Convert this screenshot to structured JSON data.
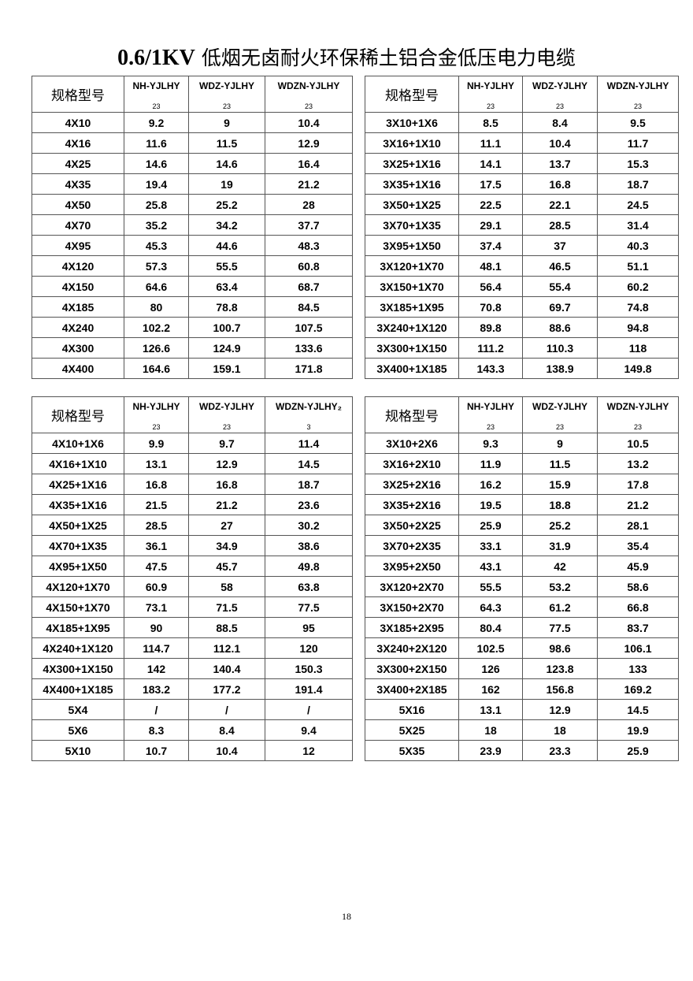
{
  "title_prefix": "0.6/1KV",
  "title_rest": "低烟无卤耐火环保稀土铝合金低压电力电缆",
  "page_number": "18",
  "tables": [
    {
      "headers": [
        "规格型号",
        "NH-YJLHY",
        "WDZ-YJLHY",
        "WDZN-YJLHY"
      ],
      "subs": [
        "",
        "23",
        "23",
        "23"
      ],
      "rows": [
        [
          "4X10",
          "9.2",
          "9",
          "10.4"
        ],
        [
          "4X16",
          "11.6",
          "11.5",
          "12.9"
        ],
        [
          "4X25",
          "14.6",
          "14.6",
          "16.4"
        ],
        [
          "4X35",
          "19.4",
          "19",
          "21.2"
        ],
        [
          "4X50",
          "25.8",
          "25.2",
          "28"
        ],
        [
          "4X70",
          "35.2",
          "34.2",
          "37.7"
        ],
        [
          "4X95",
          "45.3",
          "44.6",
          "48.3"
        ],
        [
          "4X120",
          "57.3",
          "55.5",
          "60.8"
        ],
        [
          "4X150",
          "64.6",
          "63.4",
          "68.7"
        ],
        [
          "4X185",
          "80",
          "78.8",
          "84.5"
        ],
        [
          "4X240",
          "102.2",
          "100.7",
          "107.5"
        ],
        [
          "4X300",
          "126.6",
          "124.9",
          "133.6"
        ],
        [
          "4X400",
          "164.6",
          "159.1",
          "171.8"
        ]
      ]
    },
    {
      "headers": [
        "规格型号",
        "NH-YJLHY",
        "WDZ-YJLHY",
        "WDZN-YJLHY"
      ],
      "subs": [
        "",
        "23",
        "23",
        "23"
      ],
      "rows": [
        [
          "3X10+1X6",
          "8.5",
          "8.4",
          "9.5"
        ],
        [
          "3X16+1X10",
          "11.1",
          "10.4",
          "11.7"
        ],
        [
          "3X25+1X16",
          "14.1",
          "13.7",
          "15.3"
        ],
        [
          "3X35+1X16",
          "17.5",
          "16.8",
          "18.7"
        ],
        [
          "3X50+1X25",
          "22.5",
          "22.1",
          "24.5"
        ],
        [
          "3X70+1X35",
          "29.1",
          "28.5",
          "31.4"
        ],
        [
          "3X95+1X50",
          "37.4",
          "37",
          "40.3"
        ],
        [
          "3X120+1X70",
          "48.1",
          "46.5",
          "51.1"
        ],
        [
          "3X150+1X70",
          "56.4",
          "55.4",
          "60.2"
        ],
        [
          "3X185+1X95",
          "70.8",
          "69.7",
          "74.8"
        ],
        [
          "3X240+1X120",
          "89.8",
          "88.6",
          "94.8"
        ],
        [
          "3X300+1X150",
          "111.2",
          "110.3",
          "118"
        ],
        [
          "3X400+1X185",
          "143.3",
          "138.9",
          "149.8"
        ]
      ]
    },
    {
      "headers": [
        "规格型号",
        "NH-YJLHY",
        "WDZ-YJLHY",
        "WDZN-YJLHY₂"
      ],
      "subs": [
        "",
        "23",
        "23",
        "3"
      ],
      "rows": [
        [
          "4X10+1X6",
          "9.9",
          "9.7",
          "11.4"
        ],
        [
          "4X16+1X10",
          "13.1",
          "12.9",
          "14.5"
        ],
        [
          "4X25+1X16",
          "16.8",
          "16.8",
          "18.7"
        ],
        [
          "4X35+1X16",
          "21.5",
          "21.2",
          "23.6"
        ],
        [
          "4X50+1X25",
          "28.5",
          "27",
          "30.2"
        ],
        [
          "4X70+1X35",
          "36.1",
          "34.9",
          "38.6"
        ],
        [
          "4X95+1X50",
          "47.5",
          "45.7",
          "49.8"
        ],
        [
          "4X120+1X70",
          "60.9",
          "58",
          "63.8"
        ],
        [
          "4X150+1X70",
          "73.1",
          "71.5",
          "77.5"
        ],
        [
          "4X185+1X95",
          "90",
          "88.5",
          "95"
        ],
        [
          "4X240+1X120",
          "114.7",
          "112.1",
          "120"
        ],
        [
          "4X300+1X150",
          "142",
          "140.4",
          "150.3"
        ],
        [
          "4X400+1X185",
          "183.2",
          "177.2",
          "191.4"
        ],
        [
          "5X4",
          "/",
          "/",
          "/"
        ],
        [
          "5X6",
          "8.3",
          "8.4",
          "9.4"
        ],
        [
          "5X10",
          "10.7",
          "10.4",
          "12"
        ]
      ]
    },
    {
      "headers": [
        "规格型号",
        "NH-YJLHY",
        "WDZ-YJLHY",
        "WDZN-YJLHY"
      ],
      "subs": [
        "",
        "23",
        "23",
        "23"
      ],
      "rows": [
        [
          "3X10+2X6",
          "9.3",
          "9",
          "10.5"
        ],
        [
          "3X16+2X10",
          "11.9",
          "11.5",
          "13.2"
        ],
        [
          "3X25+2X16",
          "16.2",
          "15.9",
          "17.8"
        ],
        [
          "3X35+2X16",
          "19.5",
          "18.8",
          "21.2"
        ],
        [
          "3X50+2X25",
          "25.9",
          "25.2",
          "28.1"
        ],
        [
          "3X70+2X35",
          "33.1",
          "31.9",
          "35.4"
        ],
        [
          "3X95+2X50",
          "43.1",
          "42",
          "45.9"
        ],
        [
          "3X120+2X70",
          "55.5",
          "53.2",
          "58.6"
        ],
        [
          "3X150+2X70",
          "64.3",
          "61.2",
          "66.8"
        ],
        [
          "3X185+2X95",
          "80.4",
          "77.5",
          "83.7"
        ],
        [
          "3X240+2X120",
          "102.5",
          "98.6",
          "106.1"
        ],
        [
          "3X300+2X150",
          "126",
          "123.8",
          "133"
        ],
        [
          "3X400+2X185",
          "162",
          "156.8",
          "169.2"
        ],
        [
          "5X16",
          "13.1",
          "12.9",
          "14.5"
        ],
        [
          "5X25",
          "18",
          "18",
          "19.9"
        ],
        [
          "5X35",
          "23.9",
          "23.3",
          "25.9"
        ]
      ]
    }
  ]
}
